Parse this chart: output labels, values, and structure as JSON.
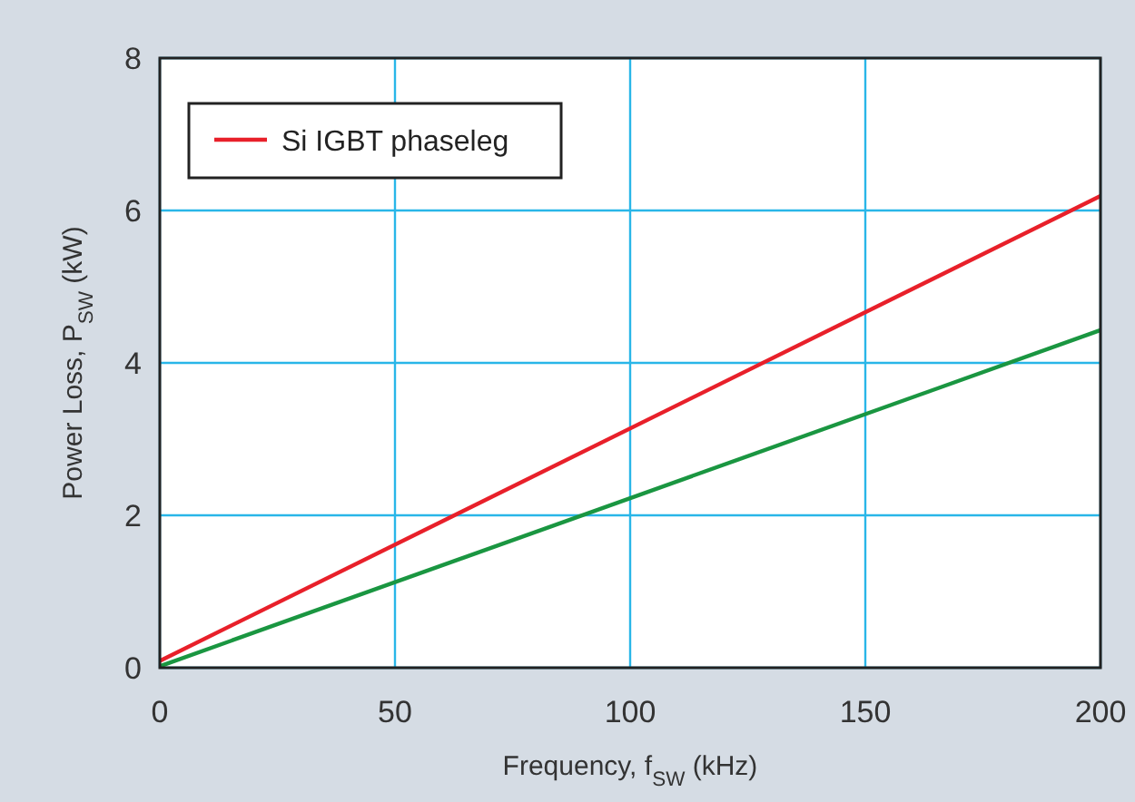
{
  "chart_data": {
    "type": "line",
    "xlabel": "Frequency, f$_{SW}$ (kHz)",
    "ylabel": "Power Loss, P$_{SW}$ (kW)",
    "xlim": [
      0,
      200
    ],
    "ylim": [
      0,
      8
    ],
    "xticks": [
      0,
      50,
      100,
      150,
      200
    ],
    "yticks": [
      0,
      2,
      4,
      6,
      8
    ],
    "grid": true,
    "legend": "top left",
    "line_style": "solid",
    "x": [
      0,
      200
    ],
    "series": [
      {
        "name": "Si IGBT phaseleg",
        "color": "#e8202a",
        "values": [
          0.09,
          6.19
        ]
      },
      {
        "color": "#1a9641",
        "values": [
          0.02,
          4.43
        ]
      }
    ]
  }
}
